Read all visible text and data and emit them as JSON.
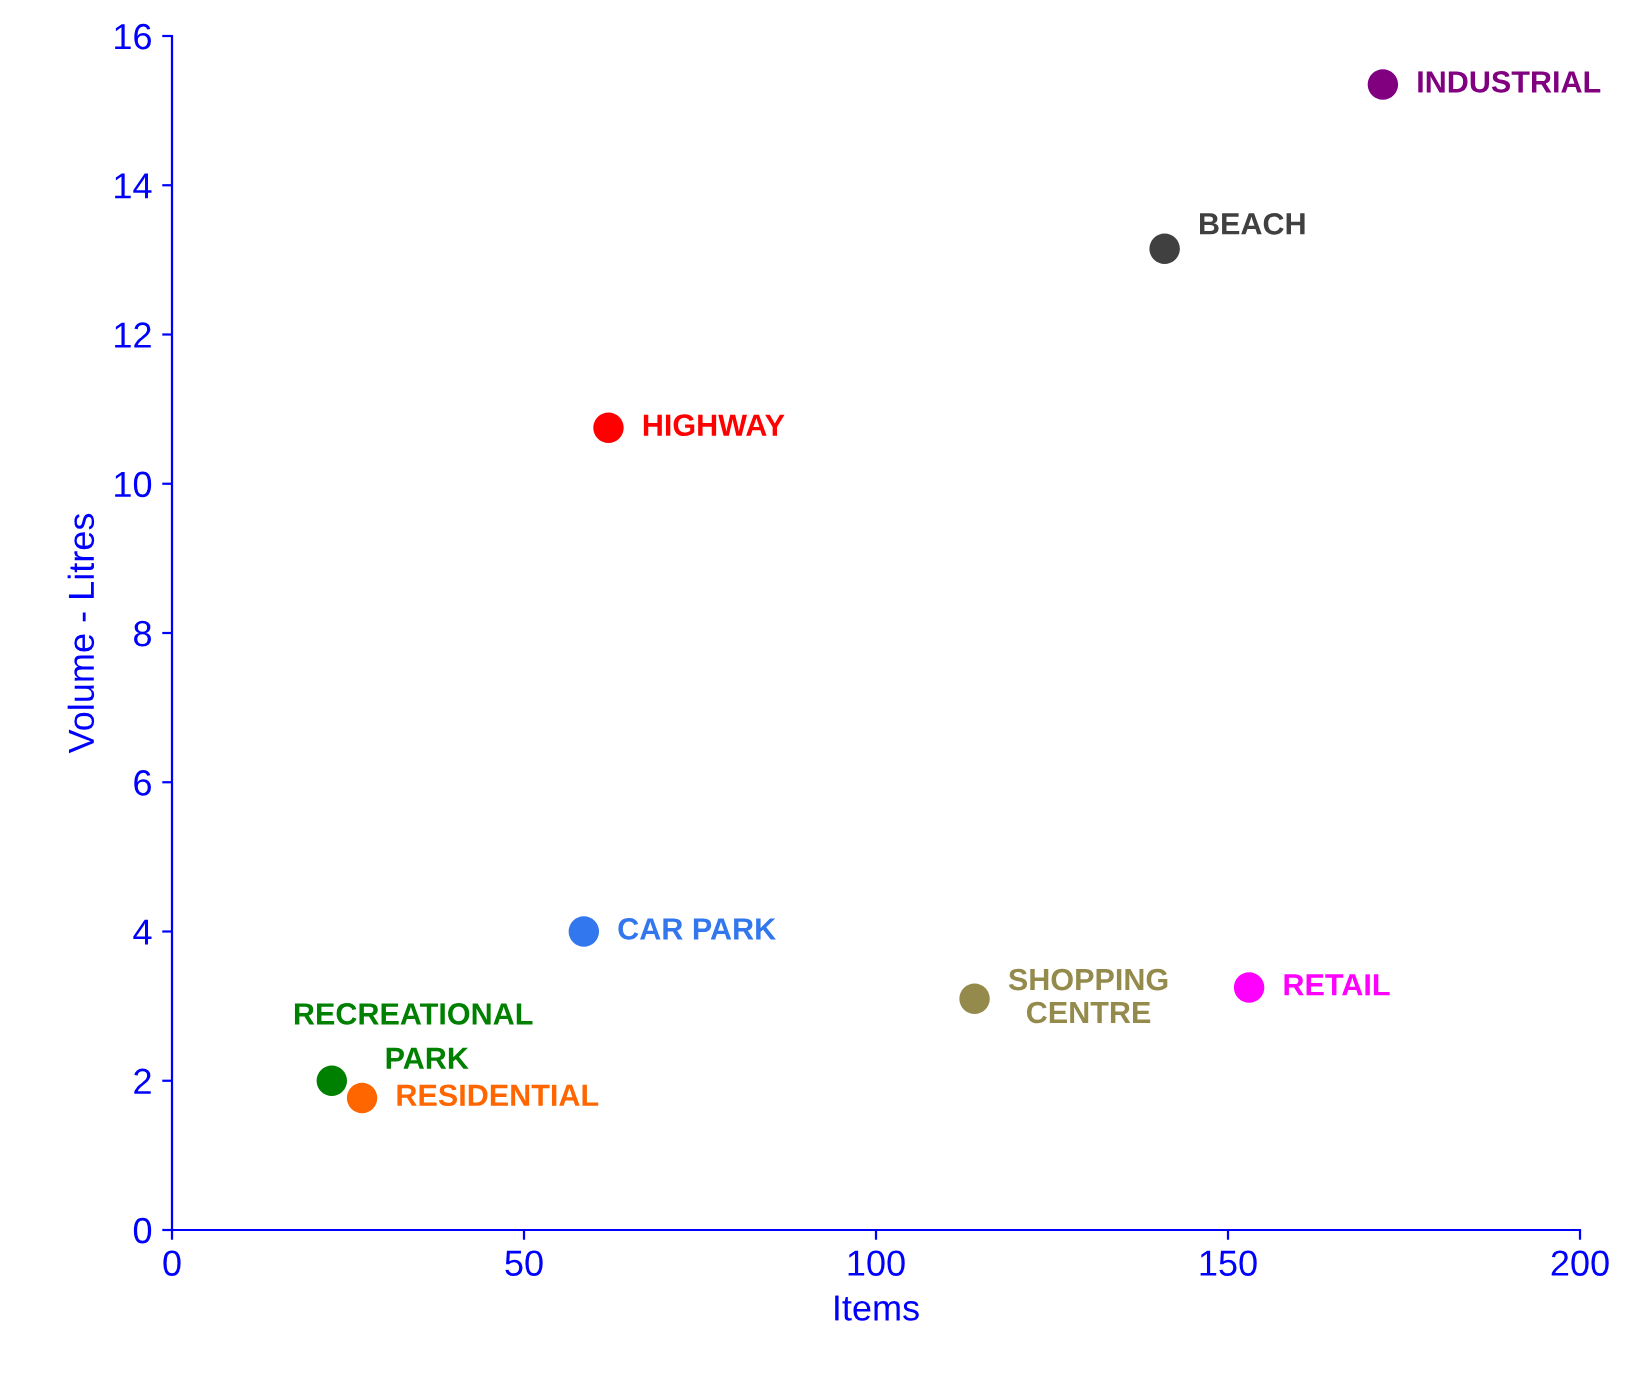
{
  "chart_data": {
    "type": "scatter",
    "xlabel": "Items",
    "ylabel": "Volume - Litres",
    "xlim": [
      0,
      200
    ],
    "ylim": [
      0,
      16
    ],
    "xticks": [
      0,
      50,
      100,
      150,
      200
    ],
    "yticks": [
      0,
      2,
      4,
      6,
      8,
      10,
      12,
      14,
      16
    ],
    "grid": false,
    "marker": "circle",
    "series": [
      {
        "name": "INDUSTRIAL",
        "color": "#800080",
        "x": [
          172
        ],
        "values": [
          15.35
        ]
      },
      {
        "name": "BEACH",
        "color": "#404040",
        "x": [
          141
        ],
        "values": [
          13.15
        ]
      },
      {
        "name": "HIGHWAY",
        "color": "#ff0000",
        "x": [
          62
        ],
        "values": [
          10.75
        ]
      },
      {
        "name": "CAR PARK",
        "color": "#3377ee",
        "x": [
          58.5
        ],
        "values": [
          4.0
        ]
      },
      {
        "name": "SHOPPING CENTRE",
        "color": "#948a4c",
        "x": [
          114
        ],
        "values": [
          3.1
        ]
      },
      {
        "name": "RETAIL",
        "color": "#ff00ff",
        "x": [
          153
        ],
        "values": [
          3.25
        ]
      },
      {
        "name": "RECREATIONAL PARK",
        "color": "#008000",
        "x": [
          22.7
        ],
        "values": [
          2.0
        ]
      },
      {
        "name": "RESIDENTIAL",
        "color": "#ff6600",
        "x": [
          27
        ],
        "values": [
          1.77
        ]
      }
    ]
  }
}
